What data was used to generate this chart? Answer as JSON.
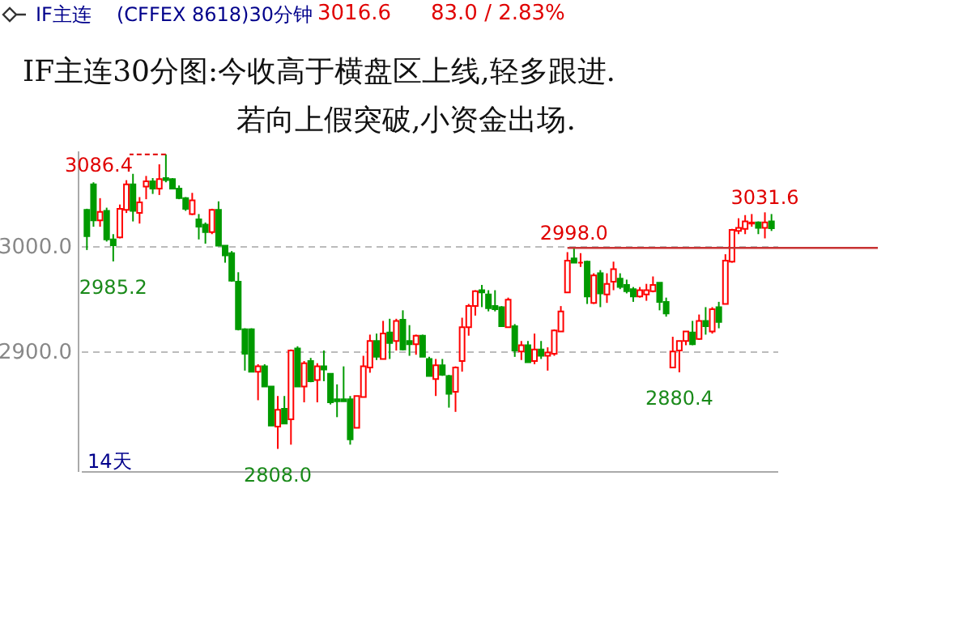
{
  "chart_data": {
    "type": "candlestick",
    "title": "IF主连30分图:今收高于横盘区上线,轻多跟进.",
    "subtitle": "若向上假突破,小资金出场.",
    "annotations": [
      "IF主连",
      "(CFFEX 8618)30分钟",
      "3016.6",
      "83.0 / 2.83%",
      "14天",
      "3086.4",
      {
        "text": "2985.2",
        "y": 2985.2
      },
      {
        "text": "2808.0",
        "y": 2808.0
      },
      {
        "text": "2998.0",
        "y": 2998.0
      },
      {
        "text": "2880.4",
        "y": 2880.4
      },
      {
        "text": "3031.6",
        "y": 3031.6
      }
    ],
    "categories": [
      null,
      null,
      null,
      null,
      null,
      null,
      null,
      null,
      null,
      null,
      null,
      null,
      null,
      null,
      null,
      null,
      null,
      null,
      null,
      null,
      null,
      null,
      null,
      null,
      null,
      null,
      null,
      null,
      null,
      null,
      null,
      null,
      null,
      null,
      null,
      null,
      null,
      null,
      null,
      null,
      null,
      null,
      null,
      null,
      null,
      null,
      null,
      null,
      null,
      null,
      null,
      null,
      null,
      null,
      null,
      null,
      null,
      null,
      null,
      null,
      null,
      null,
      null,
      null,
      null,
      null,
      null,
      null,
      null,
      null,
      null,
      null,
      null,
      null,
      null,
      null,
      null,
      null,
      null,
      null,
      null,
      null,
      null,
      null,
      null,
      null,
      null,
      null,
      null,
      null,
      null,
      null,
      null,
      null,
      null,
      null,
      null,
      null,
      null,
      null,
      null,
      null,
      null,
      null,
      null
    ],
    "ohlc": [
      [
        3034,
        3035,
        2996,
        3009
      ],
      [
        3058,
        3060,
        3018,
        3024
      ],
      [
        3024,
        3045,
        3018,
        3032
      ],
      [
        3033,
        3036,
        3004,
        3006
      ],
      [
        3006,
        3011,
        2985.2,
        3000.5
      ],
      [
        3008,
        3039,
        3007,
        3035
      ],
      [
        3034,
        3062,
        3031,
        3058
      ],
      [
        3058,
        3068,
        3023,
        3033
      ],
      [
        3031,
        3046,
        3021,
        3041
      ],
      [
        3056,
        3066,
        3044,
        3061
      ],
      [
        3061,
        3064,
        3049,
        3054
      ],
      [
        3054,
        3077,
        3048,
        3063
      ],
      [
        3064,
        3086.4,
        3060,
        3062
      ],
      [
        3063,
        3064,
        3054,
        3054
      ],
      [
        3054,
        3057,
        3044,
        3045
      ],
      [
        3045,
        3046,
        3033,
        3035
      ],
      [
        3030,
        3050,
        3029,
        3043
      ],
      [
        3025,
        3030,
        3006,
        3018
      ],
      [
        3020,
        3022,
        3002,
        3013
      ],
      [
        3013,
        3035,
        3011,
        3034
      ],
      [
        3034,
        3042,
        3000,
        3000
      ],
      [
        3000,
        3000,
        2984,
        2991
      ],
      [
        2993,
        2995,
        2966,
        2967
      ],
      [
        2966,
        2975,
        2920,
        2921
      ],
      [
        2921,
        2922,
        2882,
        2898
      ],
      [
        2921,
        2922,
        2881,
        2881
      ],
      [
        2881,
        2888,
        2854,
        2886
      ],
      [
        2886,
        2888,
        2867,
        2867
      ],
      [
        2867,
        2867,
        2830,
        2830
      ],
      [
        2829,
        2858,
        2808.0,
        2845
      ],
      [
        2846,
        2858,
        2832,
        2832
      ],
      [
        2836,
        2902,
        2812,
        2901
      ],
      [
        2903,
        2905,
        2867,
        2867
      ],
      [
        2867,
        2891,
        2852,
        2889
      ],
      [
        2891,
        2894,
        2871,
        2872
      ],
      [
        2873,
        2889,
        2852,
        2886
      ],
      [
        2886,
        2901,
        2872,
        2883
      ],
      [
        2879,
        2879,
        2850,
        2852
      ],
      [
        2855,
        2869,
        2838,
        2853
      ],
      [
        2855,
        2886,
        2853,
        2853
      ],
      [
        2855,
        2858,
        2812,
        2817
      ],
      [
        2828,
        2858,
        2828,
        2858
      ],
      [
        2857,
        2896,
        2857,
        2886
      ],
      [
        2885,
        2916,
        2880,
        2910
      ],
      [
        2910,
        2917,
        2892,
        2895
      ],
      [
        2893,
        2929,
        2893,
        2917
      ],
      [
        2918,
        2931,
        2893,
        2908
      ],
      [
        2910,
        2931,
        2901,
        2929
      ],
      [
        2930,
        2939,
        2901,
        2902
      ],
      [
        2910,
        2925,
        2896,
        2907
      ],
      [
        2907,
        2916,
        2897,
        2915
      ],
      [
        2915,
        2916,
        2895,
        2895
      ],
      [
        2893,
        2895,
        2877,
        2877
      ],
      [
        2874,
        2893,
        2858,
        2887
      ],
      [
        2887,
        2893,
        2877,
        2878
      ],
      [
        2877,
        2878,
        2847,
        2860
      ],
      [
        2862,
        2886,
        2843,
        2885
      ],
      [
        2891,
        2932,
        2881,
        2923
      ],
      [
        2923,
        2945,
        2915,
        2943
      ],
      [
        2943,
        2958,
        2934,
        2957
      ],
      [
        2958,
        2963,
        2942,
        2956
      ],
      [
        2954,
        2958,
        2938,
        2941
      ],
      [
        2943,
        2958,
        2938,
        2940
      ],
      [
        2942,
        2943,
        2924,
        2924
      ],
      [
        2923,
        2951,
        2923,
        2949
      ],
      [
        2924,
        2926,
        2895,
        2901
      ],
      [
        2900,
        2910,
        2892,
        2906
      ],
      [
        2906,
        2910,
        2890,
        2890
      ],
      [
        2891,
        2917,
        2888,
        2902
      ],
      [
        2902,
        2910,
        2893,
        2896
      ],
      [
        2896,
        2904,
        2882,
        2899
      ],
      [
        2898,
        2921,
        2896,
        2920
      ],
      [
        2919,
        2943,
        2919,
        2938
      ],
      [
        2956,
        2994,
        2956,
        2986
      ],
      [
        2988,
        2998.0,
        2984,
        2984
      ],
      [
        2984,
        2993,
        2980,
        2984
      ],
      [
        2985,
        2986,
        2945,
        2952
      ],
      [
        2946,
        2974,
        2945,
        2972
      ],
      [
        2974,
        2977,
        2942,
        2955
      ],
      [
        2954,
        2974,
        2946,
        2964
      ],
      [
        2966,
        2985,
        2958,
        2978
      ],
      [
        2969,
        2974,
        2959,
        2961
      ],
      [
        2963,
        2968,
        2955,
        2957
      ],
      [
        2959,
        2961,
        2947,
        2952
      ],
      [
        2952,
        2961,
        2951,
        2958
      ],
      [
        2954,
        2964,
        2948,
        2958
      ],
      [
        2957,
        2971,
        2956,
        2963
      ],
      [
        2965,
        2965,
        2939,
        2947
      ],
      [
        2947,
        2951,
        2933,
        2936
      ],
      [
        2885,
        2914,
        2885,
        2900
      ],
      [
        2901,
        2910,
        2880.4,
        2910
      ],
      [
        2910,
        2919,
        2906,
        2919
      ],
      [
        2918,
        2929,
        2906,
        2907
      ],
      [
        2912,
        2935,
        2911,
        2929
      ],
      [
        2929,
        2942,
        2916,
        2924
      ],
      [
        2919,
        2942,
        2917,
        2940
      ],
      [
        2942,
        2947,
        2922,
        2928
      ],
      [
        2945,
        2992,
        2945,
        2986
      ],
      [
        2985,
        3016,
        2984,
        3015
      ],
      [
        3014,
        3026,
        3011,
        3017
      ],
      [
        3016,
        3029,
        3011,
        3023
      ],
      [
        3021,
        3030,
        3018,
        3022
      ],
      [
        3022,
        3023,
        3011,
        3017
      ],
      [
        3017,
        3031.6,
        3007,
        3022
      ],
      [
        3023,
        3030,
        3014,
        3016.6
      ]
    ],
    "ylim": [
      2787,
      3090
    ],
    "yticks": [
      {
        "value": 2900,
        "label": "2900.0"
      },
      {
        "value": 3000,
        "label": "3000.0"
      }
    ],
    "grid": "y",
    "tick_labels": "y",
    "ref_lines": [
      {
        "axis": "y",
        "value": 2998,
        "color": "#c83232"
      }
    ]
  }
}
